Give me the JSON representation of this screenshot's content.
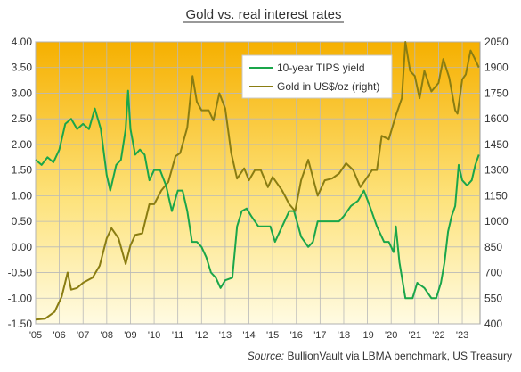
{
  "chart_data": {
    "type": "line",
    "title": "Gold vs. real interest rates",
    "source_label": "Source:",
    "source_text": "BullionVault via LBMA benchmark, US Treasury",
    "left_axis": {
      "range": [
        -1.5,
        4.0
      ],
      "ticks": [
        "4.00",
        "3.50",
        "3.00",
        "2.50",
        "2.00",
        "1.50",
        "1.00",
        "0.50",
        "0.00",
        "-0.50",
        "-1.00",
        "-1.50"
      ]
    },
    "right_axis": {
      "range": [
        400,
        2050
      ],
      "ticks": [
        "2050",
        "1900",
        "1750",
        "1600",
        "1450",
        "1300",
        "1150",
        "1000",
        "850",
        "700",
        "550",
        "400"
      ]
    },
    "x_axis": {
      "range": [
        2005.0,
        2023.75
      ],
      "ticks": [
        "'05",
        "'06",
        "'07",
        "'08",
        "'09",
        "'10",
        "'11",
        "'12",
        "'13",
        "'14",
        "'15",
        "'16",
        "'17",
        "'18",
        "'19",
        "'20",
        "'21",
        "'22",
        "'23"
      ]
    },
    "grid": true,
    "legend_position": "top-center-right",
    "series": [
      {
        "name": "10-year TIPS yield",
        "axis": "left",
        "color": "#1aa64a",
        "points": [
          [
            2005.0,
            1.7
          ],
          [
            2005.25,
            1.6
          ],
          [
            2005.5,
            1.75
          ],
          [
            2005.75,
            1.65
          ],
          [
            2006.0,
            1.9
          ],
          [
            2006.25,
            2.4
          ],
          [
            2006.5,
            2.5
          ],
          [
            2006.75,
            2.3
          ],
          [
            2007.0,
            2.4
          ],
          [
            2007.25,
            2.3
          ],
          [
            2007.5,
            2.7
          ],
          [
            2007.75,
            2.3
          ],
          [
            2008.0,
            1.4
          ],
          [
            2008.15,
            1.1
          ],
          [
            2008.4,
            1.6
          ],
          [
            2008.6,
            1.7
          ],
          [
            2008.8,
            2.3
          ],
          [
            2008.9,
            3.05
          ],
          [
            2009.0,
            2.3
          ],
          [
            2009.2,
            1.8
          ],
          [
            2009.4,
            1.9
          ],
          [
            2009.6,
            1.8
          ],
          [
            2009.8,
            1.3
          ],
          [
            2010.0,
            1.5
          ],
          [
            2010.25,
            1.5
          ],
          [
            2010.5,
            1.2
          ],
          [
            2010.75,
            0.7
          ],
          [
            2011.0,
            1.1
          ],
          [
            2011.2,
            1.1
          ],
          [
            2011.4,
            0.7
          ],
          [
            2011.6,
            0.1
          ],
          [
            2011.8,
            0.1
          ],
          [
            2012.0,
            0.0
          ],
          [
            2012.2,
            -0.2
          ],
          [
            2012.4,
            -0.5
          ],
          [
            2012.6,
            -0.6
          ],
          [
            2012.8,
            -0.8
          ],
          [
            2013.0,
            -0.65
          ],
          [
            2013.3,
            -0.6
          ],
          [
            2013.5,
            0.4
          ],
          [
            2013.7,
            0.7
          ],
          [
            2013.9,
            0.75
          ],
          [
            2014.1,
            0.6
          ],
          [
            2014.4,
            0.4
          ],
          [
            2014.7,
            0.4
          ],
          [
            2014.9,
            0.4
          ],
          [
            2015.1,
            0.1
          ],
          [
            2015.4,
            0.4
          ],
          [
            2015.7,
            0.7
          ],
          [
            2015.9,
            0.7
          ],
          [
            2016.2,
            0.2
          ],
          [
            2016.5,
            0.0
          ],
          [
            2016.7,
            0.1
          ],
          [
            2016.9,
            0.5
          ],
          [
            2017.2,
            0.5
          ],
          [
            2017.5,
            0.5
          ],
          [
            2017.8,
            0.5
          ],
          [
            2018.0,
            0.6
          ],
          [
            2018.3,
            0.8
          ],
          [
            2018.6,
            0.9
          ],
          [
            2018.85,
            1.1
          ],
          [
            2019.1,
            0.8
          ],
          [
            2019.4,
            0.4
          ],
          [
            2019.7,
            0.1
          ],
          [
            2019.9,
            0.1
          ],
          [
            2020.1,
            -0.1
          ],
          [
            2020.2,
            0.4
          ],
          [
            2020.35,
            -0.3
          ],
          [
            2020.6,
            -1.0
          ],
          [
            2020.9,
            -1.0
          ],
          [
            2021.1,
            -0.7
          ],
          [
            2021.4,
            -0.8
          ],
          [
            2021.7,
            -1.0
          ],
          [
            2021.9,
            -1.0
          ],
          [
            2022.1,
            -0.7
          ],
          [
            2022.25,
            -0.3
          ],
          [
            2022.4,
            0.3
          ],
          [
            2022.55,
            0.6
          ],
          [
            2022.7,
            0.8
          ],
          [
            2022.85,
            1.6
          ],
          [
            2023.0,
            1.3
          ],
          [
            2023.2,
            1.2
          ],
          [
            2023.4,
            1.3
          ],
          [
            2023.55,
            1.6
          ],
          [
            2023.7,
            1.8
          ]
        ]
      },
      {
        "name": "Gold in US$/oz (right)",
        "axis": "right",
        "color": "#8a7d12",
        "points": [
          [
            2005.0,
            425
          ],
          [
            2005.4,
            430
          ],
          [
            2005.8,
            470
          ],
          [
            2006.1,
            560
          ],
          [
            2006.35,
            700
          ],
          [
            2006.5,
            600
          ],
          [
            2006.75,
            610
          ],
          [
            2007.0,
            640
          ],
          [
            2007.4,
            670
          ],
          [
            2007.7,
            740
          ],
          [
            2008.0,
            900
          ],
          [
            2008.2,
            960
          ],
          [
            2008.5,
            900
          ],
          [
            2008.8,
            750
          ],
          [
            2009.0,
            860
          ],
          [
            2009.2,
            920
          ],
          [
            2009.5,
            930
          ],
          [
            2009.8,
            1100
          ],
          [
            2010.0,
            1100
          ],
          [
            2010.3,
            1180
          ],
          [
            2010.6,
            1230
          ],
          [
            2010.9,
            1380
          ],
          [
            2011.1,
            1400
          ],
          [
            2011.4,
            1550
          ],
          [
            2011.62,
            1850
          ],
          [
            2011.8,
            1700
          ],
          [
            2012.0,
            1650
          ],
          [
            2012.3,
            1650
          ],
          [
            2012.5,
            1590
          ],
          [
            2012.75,
            1750
          ],
          [
            2013.0,
            1660
          ],
          [
            2013.25,
            1400
          ],
          [
            2013.5,
            1250
          ],
          [
            2013.8,
            1310
          ],
          [
            2014.0,
            1240
          ],
          [
            2014.25,
            1300
          ],
          [
            2014.5,
            1300
          ],
          [
            2014.8,
            1200
          ],
          [
            2015.0,
            1260
          ],
          [
            2015.4,
            1180
          ],
          [
            2015.7,
            1100
          ],
          [
            2015.95,
            1060
          ],
          [
            2016.2,
            1240
          ],
          [
            2016.5,
            1360
          ],
          [
            2016.9,
            1150
          ],
          [
            2017.2,
            1240
          ],
          [
            2017.5,
            1250
          ],
          [
            2017.8,
            1280
          ],
          [
            2018.1,
            1340
          ],
          [
            2018.4,
            1300
          ],
          [
            2018.7,
            1200
          ],
          [
            2018.95,
            1250
          ],
          [
            2019.2,
            1300
          ],
          [
            2019.4,
            1300
          ],
          [
            2019.6,
            1500
          ],
          [
            2019.9,
            1480
          ],
          [
            2020.2,
            1620
          ],
          [
            2020.45,
            1720
          ],
          [
            2020.6,
            2050
          ],
          [
            2020.8,
            1880
          ],
          [
            2021.0,
            1850
          ],
          [
            2021.2,
            1720
          ],
          [
            2021.4,
            1880
          ],
          [
            2021.7,
            1760
          ],
          [
            2022.0,
            1810
          ],
          [
            2022.2,
            1950
          ],
          [
            2022.45,
            1840
          ],
          [
            2022.7,
            1650
          ],
          [
            2022.8,
            1630
          ],
          [
            2023.0,
            1830
          ],
          [
            2023.15,
            1860
          ],
          [
            2023.35,
            2000
          ],
          [
            2023.5,
            1960
          ],
          [
            2023.7,
            1900
          ]
        ]
      }
    ]
  }
}
